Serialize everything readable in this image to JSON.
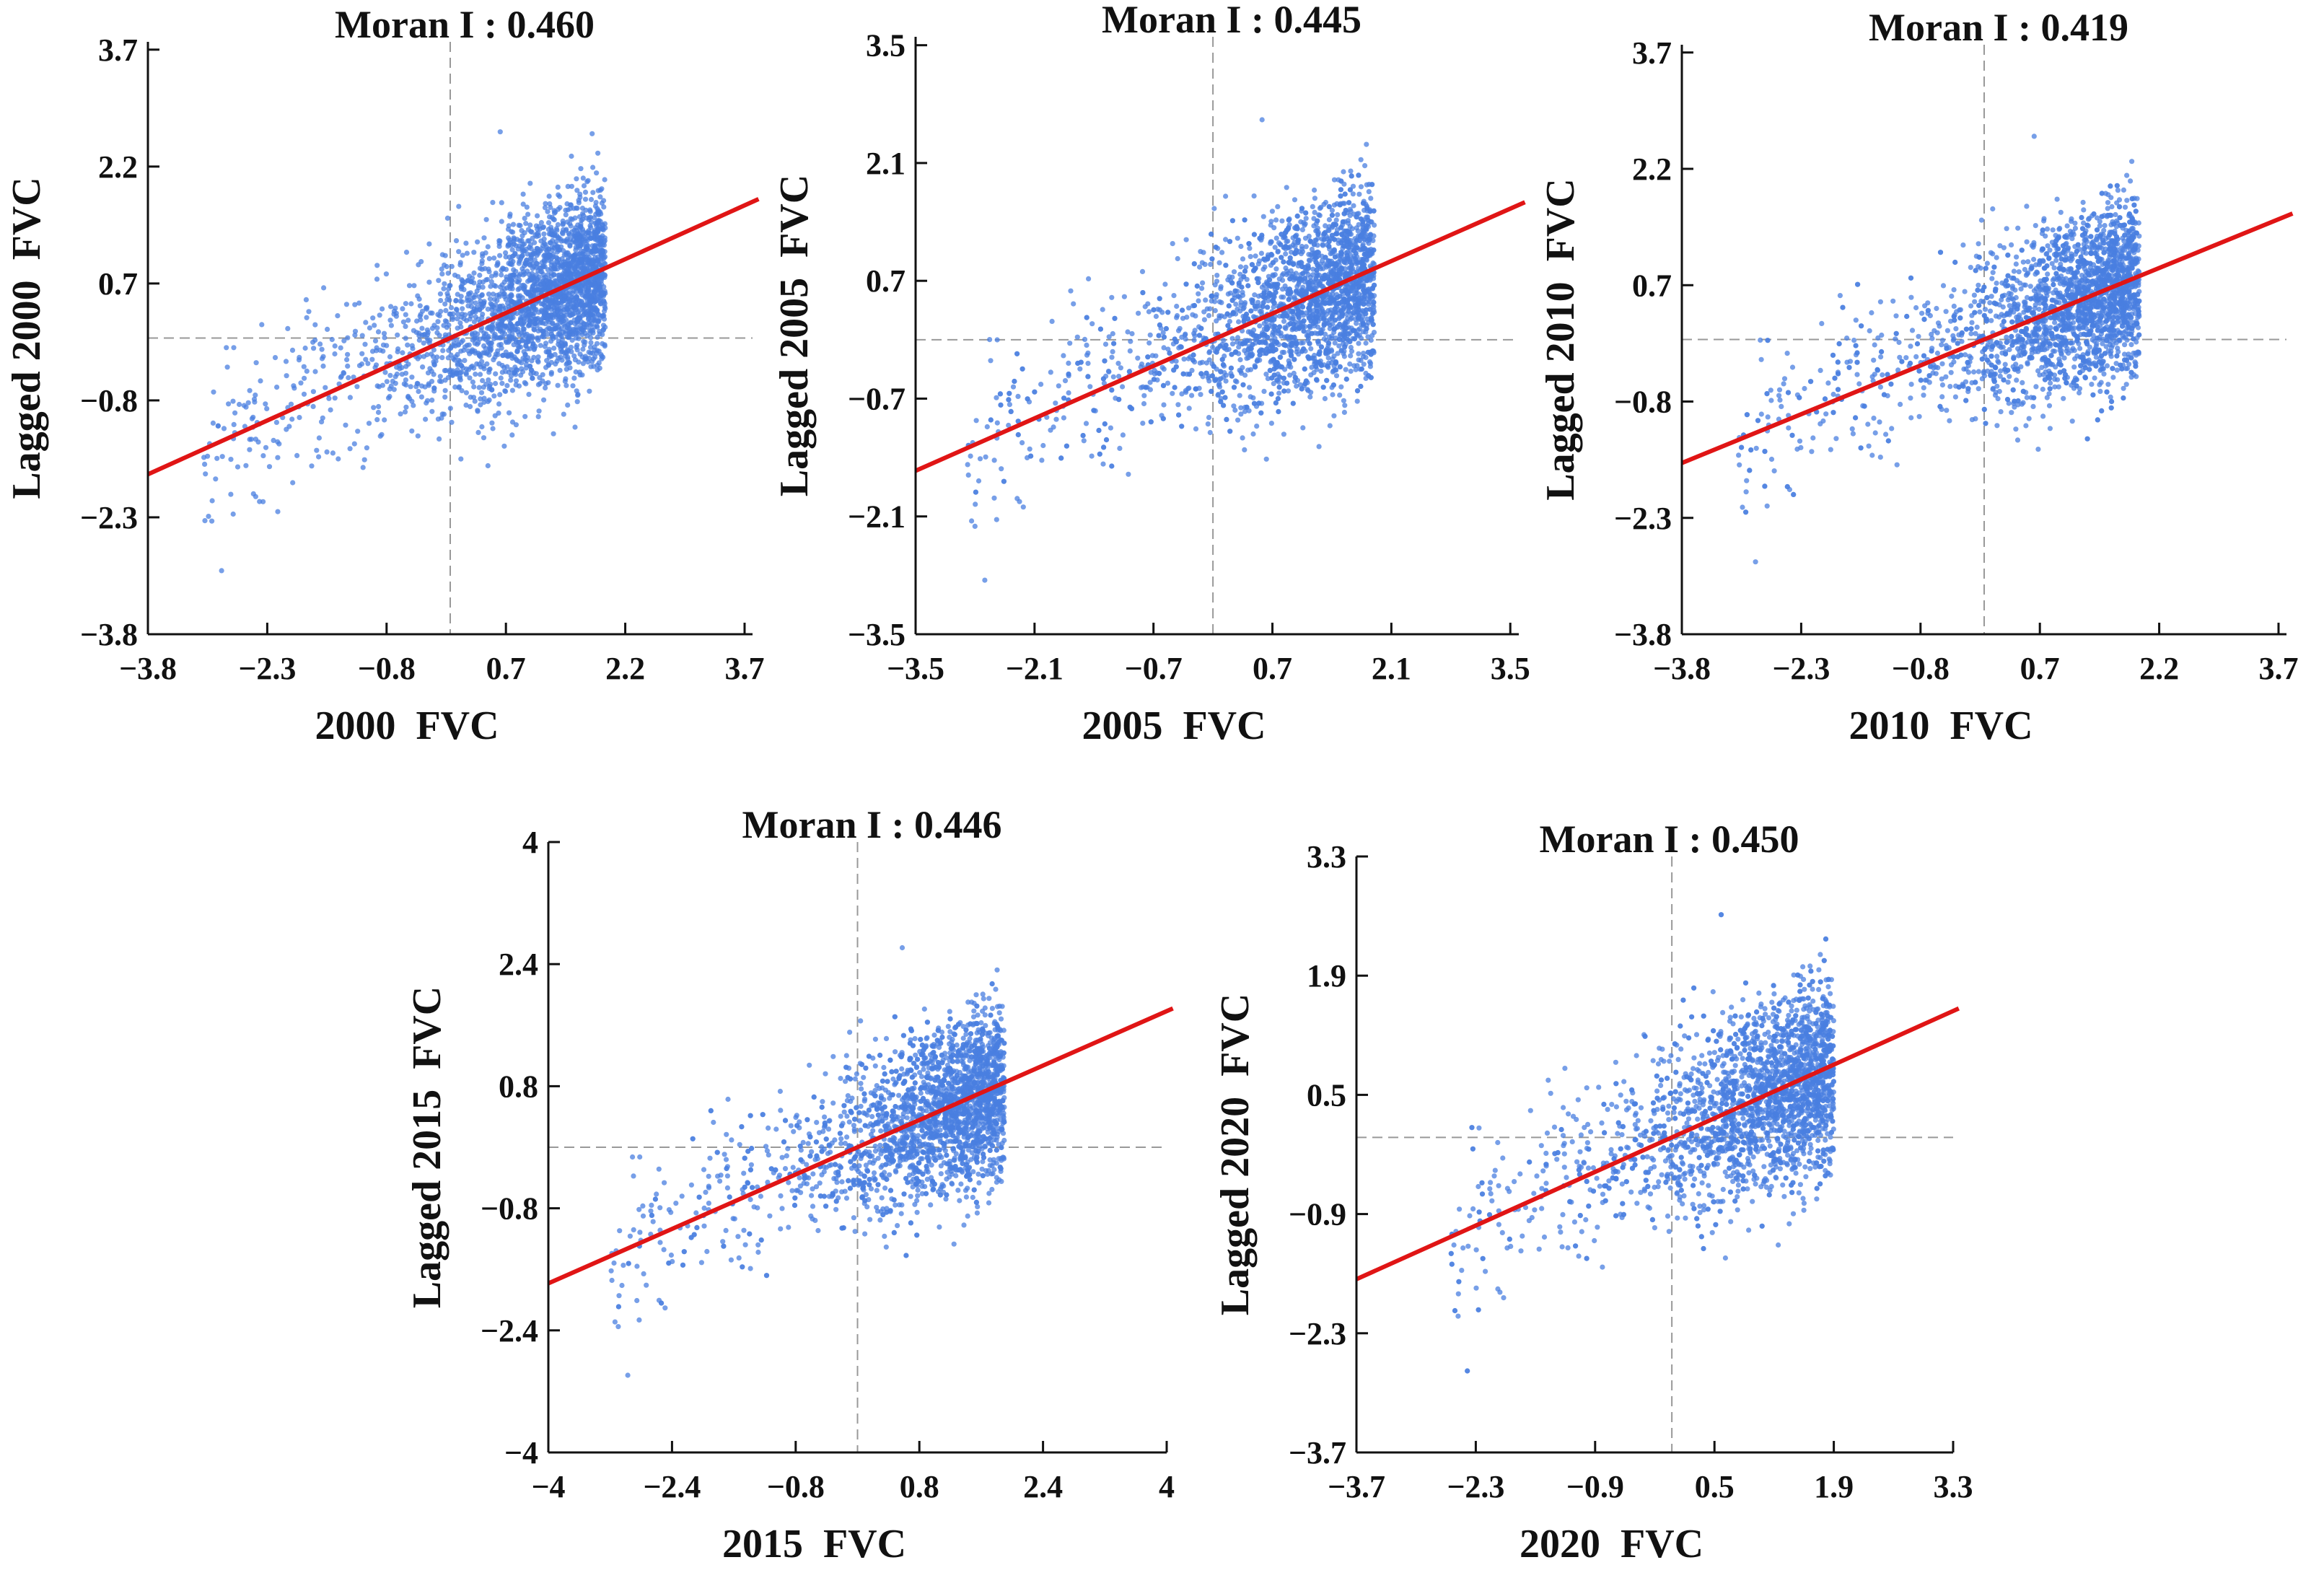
{
  "chart_data": [
    {
      "type": "scatter",
      "title": "Moran I : 0.460",
      "moran_i": 0.46,
      "xlabel": "2000  FVC",
      "ylabel": "Lagged 2000  FVC",
      "ticks": [
        "-3.8",
        "-2.3",
        "-0.8",
        "0.7",
        "2.2",
        "3.7"
      ],
      "tick_values": [
        -3.8,
        -2.3,
        -0.8,
        0.7,
        2.2,
        3.7
      ],
      "xlim": [
        -3.8,
        3.8
      ],
      "ylim": [
        -3.8,
        3.8
      ],
      "regression_slope": 0.46,
      "points_x_range": [
        -3.1,
        1.95
      ],
      "reference_lines": {
        "x": 0,
        "y": 0
      },
      "color_points": "#4a7fe0",
      "color_line": "#e01515"
    },
    {
      "type": "scatter",
      "title": "Moran I : 0.445",
      "moran_i": 0.445,
      "xlabel": "2005  FVC",
      "ylabel": "Lagged 2005  FVC",
      "ticks": [
        "-3.5",
        "-2.1",
        "-0.7",
        "0.7",
        "2.1",
        "3.5"
      ],
      "tick_values": [
        -3.5,
        -2.1,
        -0.7,
        0.7,
        2.1,
        3.5
      ],
      "xlim": [
        -3.5,
        3.6
      ],
      "ylim": [
        -3.5,
        3.6
      ],
      "regression_slope": 0.445,
      "points_x_range": [
        -2.9,
        1.9
      ],
      "reference_lines": {
        "x": 0,
        "y": 0
      },
      "color_points": "#4a7fe0",
      "color_line": "#e01515"
    },
    {
      "type": "scatter",
      "title": "Moran I : 0.419",
      "moran_i": 0.419,
      "xlabel": "2010  FVC",
      "ylabel": "Lagged 2010  FVC",
      "ticks": [
        "-3.8",
        "-2.3",
        "-0.8",
        "0.7",
        "2.2",
        "3.7"
      ],
      "tick_values": [
        -3.8,
        -2.3,
        -0.8,
        0.7,
        2.2,
        3.7
      ],
      "xlim": [
        -3.8,
        3.8
      ],
      "ylim": [
        -3.8,
        3.8
      ],
      "regression_slope": 0.419,
      "points_x_range": [
        -3.1,
        1.95
      ],
      "reference_lines": {
        "x": 0,
        "y": 0
      },
      "color_points": "#4a7fe0",
      "color_line": "#e01515"
    },
    {
      "type": "scatter",
      "title": "Moran I : 0.446",
      "moran_i": 0.446,
      "xlabel": "2015  FVC",
      "ylabel": "Lagged 2015  FVC",
      "ticks": [
        "-4",
        "-2.4",
        "-0.8",
        "0.8",
        "2.4",
        "4"
      ],
      "tick_values": [
        -4,
        -2.4,
        -0.8,
        0.8,
        2.4,
        4
      ],
      "xlim": [
        -4,
        4
      ],
      "ylim": [
        -4,
        4
      ],
      "regression_slope": 0.446,
      "points_x_range": [
        -3.2,
        1.9
      ],
      "reference_lines": {
        "x": 0,
        "y": 0
      },
      "color_points": "#4a7fe0",
      "color_line": "#e01515"
    },
    {
      "type": "scatter",
      "title": "Moran I : 0.450",
      "moran_i": 0.45,
      "xlabel": "2020  FVC",
      "ylabel": "Lagged 2020  FVC",
      "ticks": [
        "-3.7",
        "-2.3",
        "-0.9",
        "0.5",
        "1.9",
        "3.3"
      ],
      "tick_values": [
        -3.7,
        -2.3,
        -0.9,
        0.5,
        1.9,
        3.3
      ],
      "xlim": [
        -3.7,
        3.3
      ],
      "ylim": [
        -3.7,
        3.3
      ],
      "regression_slope": 0.45,
      "points_x_range": [
        -2.6,
        1.9
      ],
      "reference_lines": {
        "x": 0,
        "y": 0
      },
      "color_points": "#4a7fe0",
      "color_line": "#e01515"
    }
  ]
}
